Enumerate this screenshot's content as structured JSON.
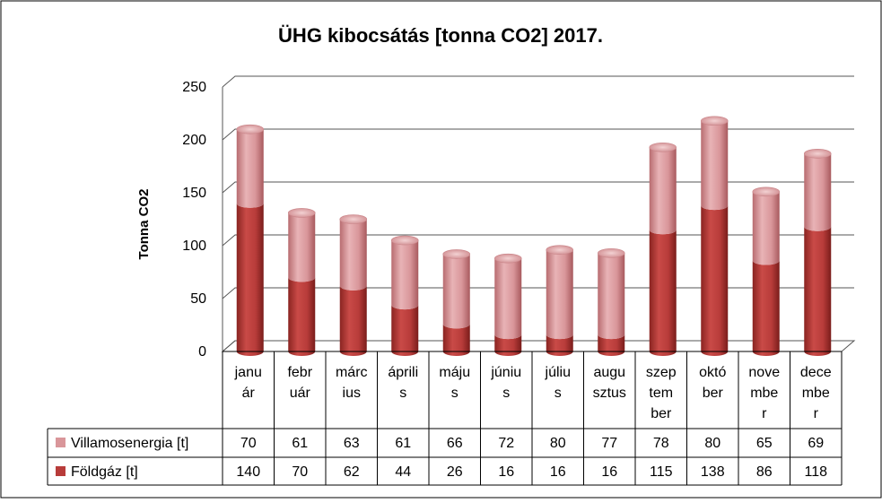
{
  "chart_data": {
    "type": "bar",
    "stacked": true,
    "title": "ÜHG kibocsátás [tonna CO2]  2017.",
    "ylabel": "Tonna CO2",
    "xlabel": "",
    "ylim": [
      0,
      250
    ],
    "yticks": [
      0,
      50,
      100,
      150,
      200,
      250
    ],
    "grid": true,
    "legend_placement": "data-table-left",
    "categories": [
      [
        "janu",
        "ár"
      ],
      [
        "febr",
        "uár"
      ],
      [
        "márc",
        "ius"
      ],
      [
        "áprili",
        "s"
      ],
      [
        "máju",
        "s"
      ],
      [
        "júniu",
        "s"
      ],
      [
        "júliu",
        "s"
      ],
      [
        "augu",
        "sztus"
      ],
      [
        "szep",
        "tem",
        "ber"
      ],
      [
        "októ",
        "ber"
      ],
      [
        "nove",
        "mbe",
        "r"
      ],
      [
        "dece",
        "mbe",
        "r"
      ]
    ],
    "series": [
      {
        "name": "Villamosenergia [t]",
        "color": "#d9969a",
        "values": [
          70,
          61,
          63,
          61,
          66,
          72,
          80,
          77,
          78,
          80,
          65,
          69
        ]
      },
      {
        "name": "Földgáz [t]",
        "color": "#b83c3a",
        "values": [
          140,
          70,
          62,
          44,
          26,
          16,
          16,
          16,
          115,
          138,
          86,
          118
        ]
      }
    ]
  }
}
